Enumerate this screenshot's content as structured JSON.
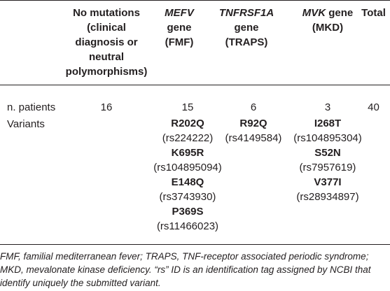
{
  "header": {
    "col_none": [
      "No mutations",
      "(clinical",
      "diagnosis or",
      "neutral",
      "polymorphisms)"
    ],
    "col_mefv_gene": "MEFV",
    "col_mefv_rest": [
      "gene",
      "(FMF)"
    ],
    "col_tnf_gene": "TNFRSF1A",
    "col_tnf_rest": [
      "gene",
      "(TRAPS)"
    ],
    "col_mvk_gene": "MVK",
    "col_mvk_suffix": " gene",
    "col_mvk_rest": "(MKD)",
    "col_total": "Total"
  },
  "rows": {
    "patients_label": "n. patients",
    "patients": {
      "none": "16",
      "mefv": "15",
      "tnf": "6",
      "mvk": "3",
      "total": "40"
    },
    "variants_label": "Variants"
  },
  "variants": {
    "mefv": [
      {
        "name": "R202Q",
        "rs": "(rs224222)"
      },
      {
        "name": "K695R",
        "rs": "(rs104895094)"
      },
      {
        "name": "E148Q",
        "rs": "(rs3743930)"
      },
      {
        "name": "P369S",
        "rs": "(rs11466023)"
      }
    ],
    "tnf": [
      {
        "name": "R92Q",
        "rs": "(rs4149584)"
      }
    ],
    "mvk": [
      {
        "name": "I268T",
        "rs": "(rs104895304)"
      },
      {
        "name": "S52N",
        "rs": "(rs7957619)"
      },
      {
        "name": "V377I",
        "rs": "(rs28934897)"
      }
    ]
  },
  "footnote": "FMF, familial mediterranean fever; TRAPS, TNF-receptor associated periodic syndrome; MKD, mevalonate kinase deficiency. “rs” ID is an identification tag assigned by NCBI that identify uniquely the submitted variant."
}
